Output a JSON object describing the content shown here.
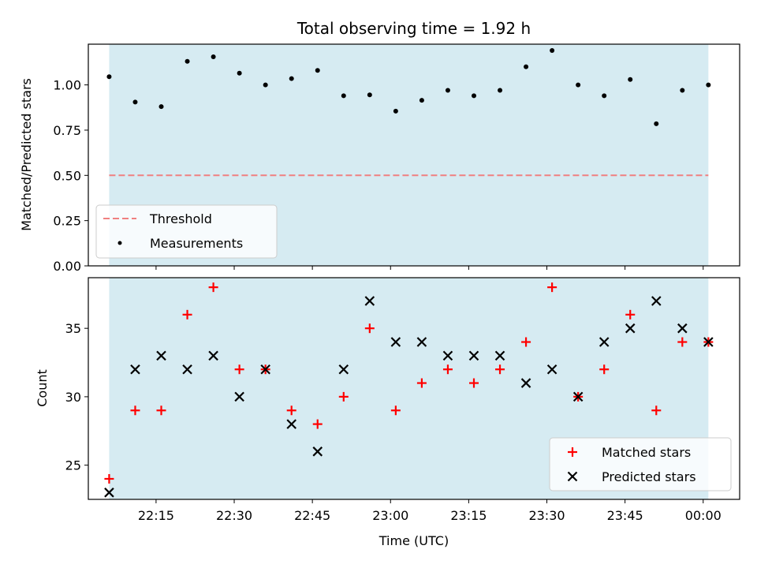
{
  "chart_data": [
    {
      "type": "scatter",
      "title": "Total observing time = 1.92 h",
      "ylabel": "Matched/Predicted stars",
      "ylim": [
        0,
        1.225
      ],
      "yticks": [
        "0.00",
        "0.25",
        "0.50",
        "0.75",
        "1.00"
      ],
      "xlim": [
        "22:02",
        "00:07"
      ],
      "shaded_span": [
        "22:06",
        "00:01"
      ],
      "shade_color": "#add8e6",
      "threshold": {
        "name": "Threshold",
        "value": 0.5,
        "color": "#f08080"
      },
      "series": [
        {
          "name": "Measurements",
          "color": "#000000",
          "x": [
            "22:06",
            "22:11",
            "22:16",
            "22:21",
            "22:26",
            "22:31",
            "22:36",
            "22:41",
            "22:46",
            "22:51",
            "22:56",
            "23:01",
            "23:06",
            "23:11",
            "23:16",
            "23:21",
            "23:26",
            "23:31",
            "23:36",
            "23:41",
            "23:46",
            "23:51",
            "23:56",
            "00:01"
          ],
          "y": [
            1.045,
            0.905,
            0.88,
            1.13,
            1.155,
            1.065,
            1.0,
            1.035,
            1.08,
            0.94,
            0.945,
            0.855,
            0.915,
            0.97,
            0.94,
            0.97,
            1.1,
            1.19,
            1.0,
            0.94,
            1.03,
            0.785,
            0.97,
            1.0
          ]
        }
      ],
      "legend_position": "lower-left"
    },
    {
      "type": "scatter",
      "xlabel": "Time (UTC)",
      "ylabel": "Count",
      "ylim": [
        22.5,
        38.7
      ],
      "yticks": [
        "25",
        "30",
        "35"
      ],
      "xticks": [
        "22:15",
        "22:30",
        "22:45",
        "23:00",
        "23:15",
        "23:30",
        "23:45",
        "00:00"
      ],
      "xlim": [
        "22:02",
        "00:07"
      ],
      "shaded_span": [
        "22:06",
        "00:01"
      ],
      "shade_color": "#add8e6",
      "series": [
        {
          "name": "Matched stars",
          "marker": "plus",
          "color": "#ff0000",
          "x": [
            "22:06",
            "22:11",
            "22:16",
            "22:21",
            "22:26",
            "22:31",
            "22:36",
            "22:41",
            "22:46",
            "22:51",
            "22:56",
            "23:01",
            "23:06",
            "23:11",
            "23:16",
            "23:21",
            "23:26",
            "23:31",
            "23:36",
            "23:41",
            "23:46",
            "23:51",
            "23:56",
            "00:01"
          ],
          "y": [
            24,
            29,
            29,
            36,
            38,
            32,
            32,
            29,
            28,
            30,
            35,
            29,
            31,
            32,
            31,
            32,
            34,
            38,
            30,
            32,
            36,
            29,
            34,
            34
          ]
        },
        {
          "name": "Predicted stars",
          "marker": "x",
          "color": "#000000",
          "x": [
            "22:06",
            "22:11",
            "22:16",
            "22:21",
            "22:26",
            "22:31",
            "22:36",
            "22:41",
            "22:46",
            "22:51",
            "22:56",
            "23:01",
            "23:06",
            "23:11",
            "23:16",
            "23:21",
            "23:26",
            "23:31",
            "23:36",
            "23:41",
            "23:46",
            "23:51",
            "23:56",
            "00:01"
          ],
          "y": [
            23,
            32,
            33,
            32,
            33,
            30,
            32,
            28,
            26,
            32,
            37,
            34,
            34,
            33,
            33,
            33,
            31,
            32,
            30,
            34,
            35,
            37,
            35,
            34
          ]
        }
      ],
      "legend_position": "lower-right"
    }
  ]
}
